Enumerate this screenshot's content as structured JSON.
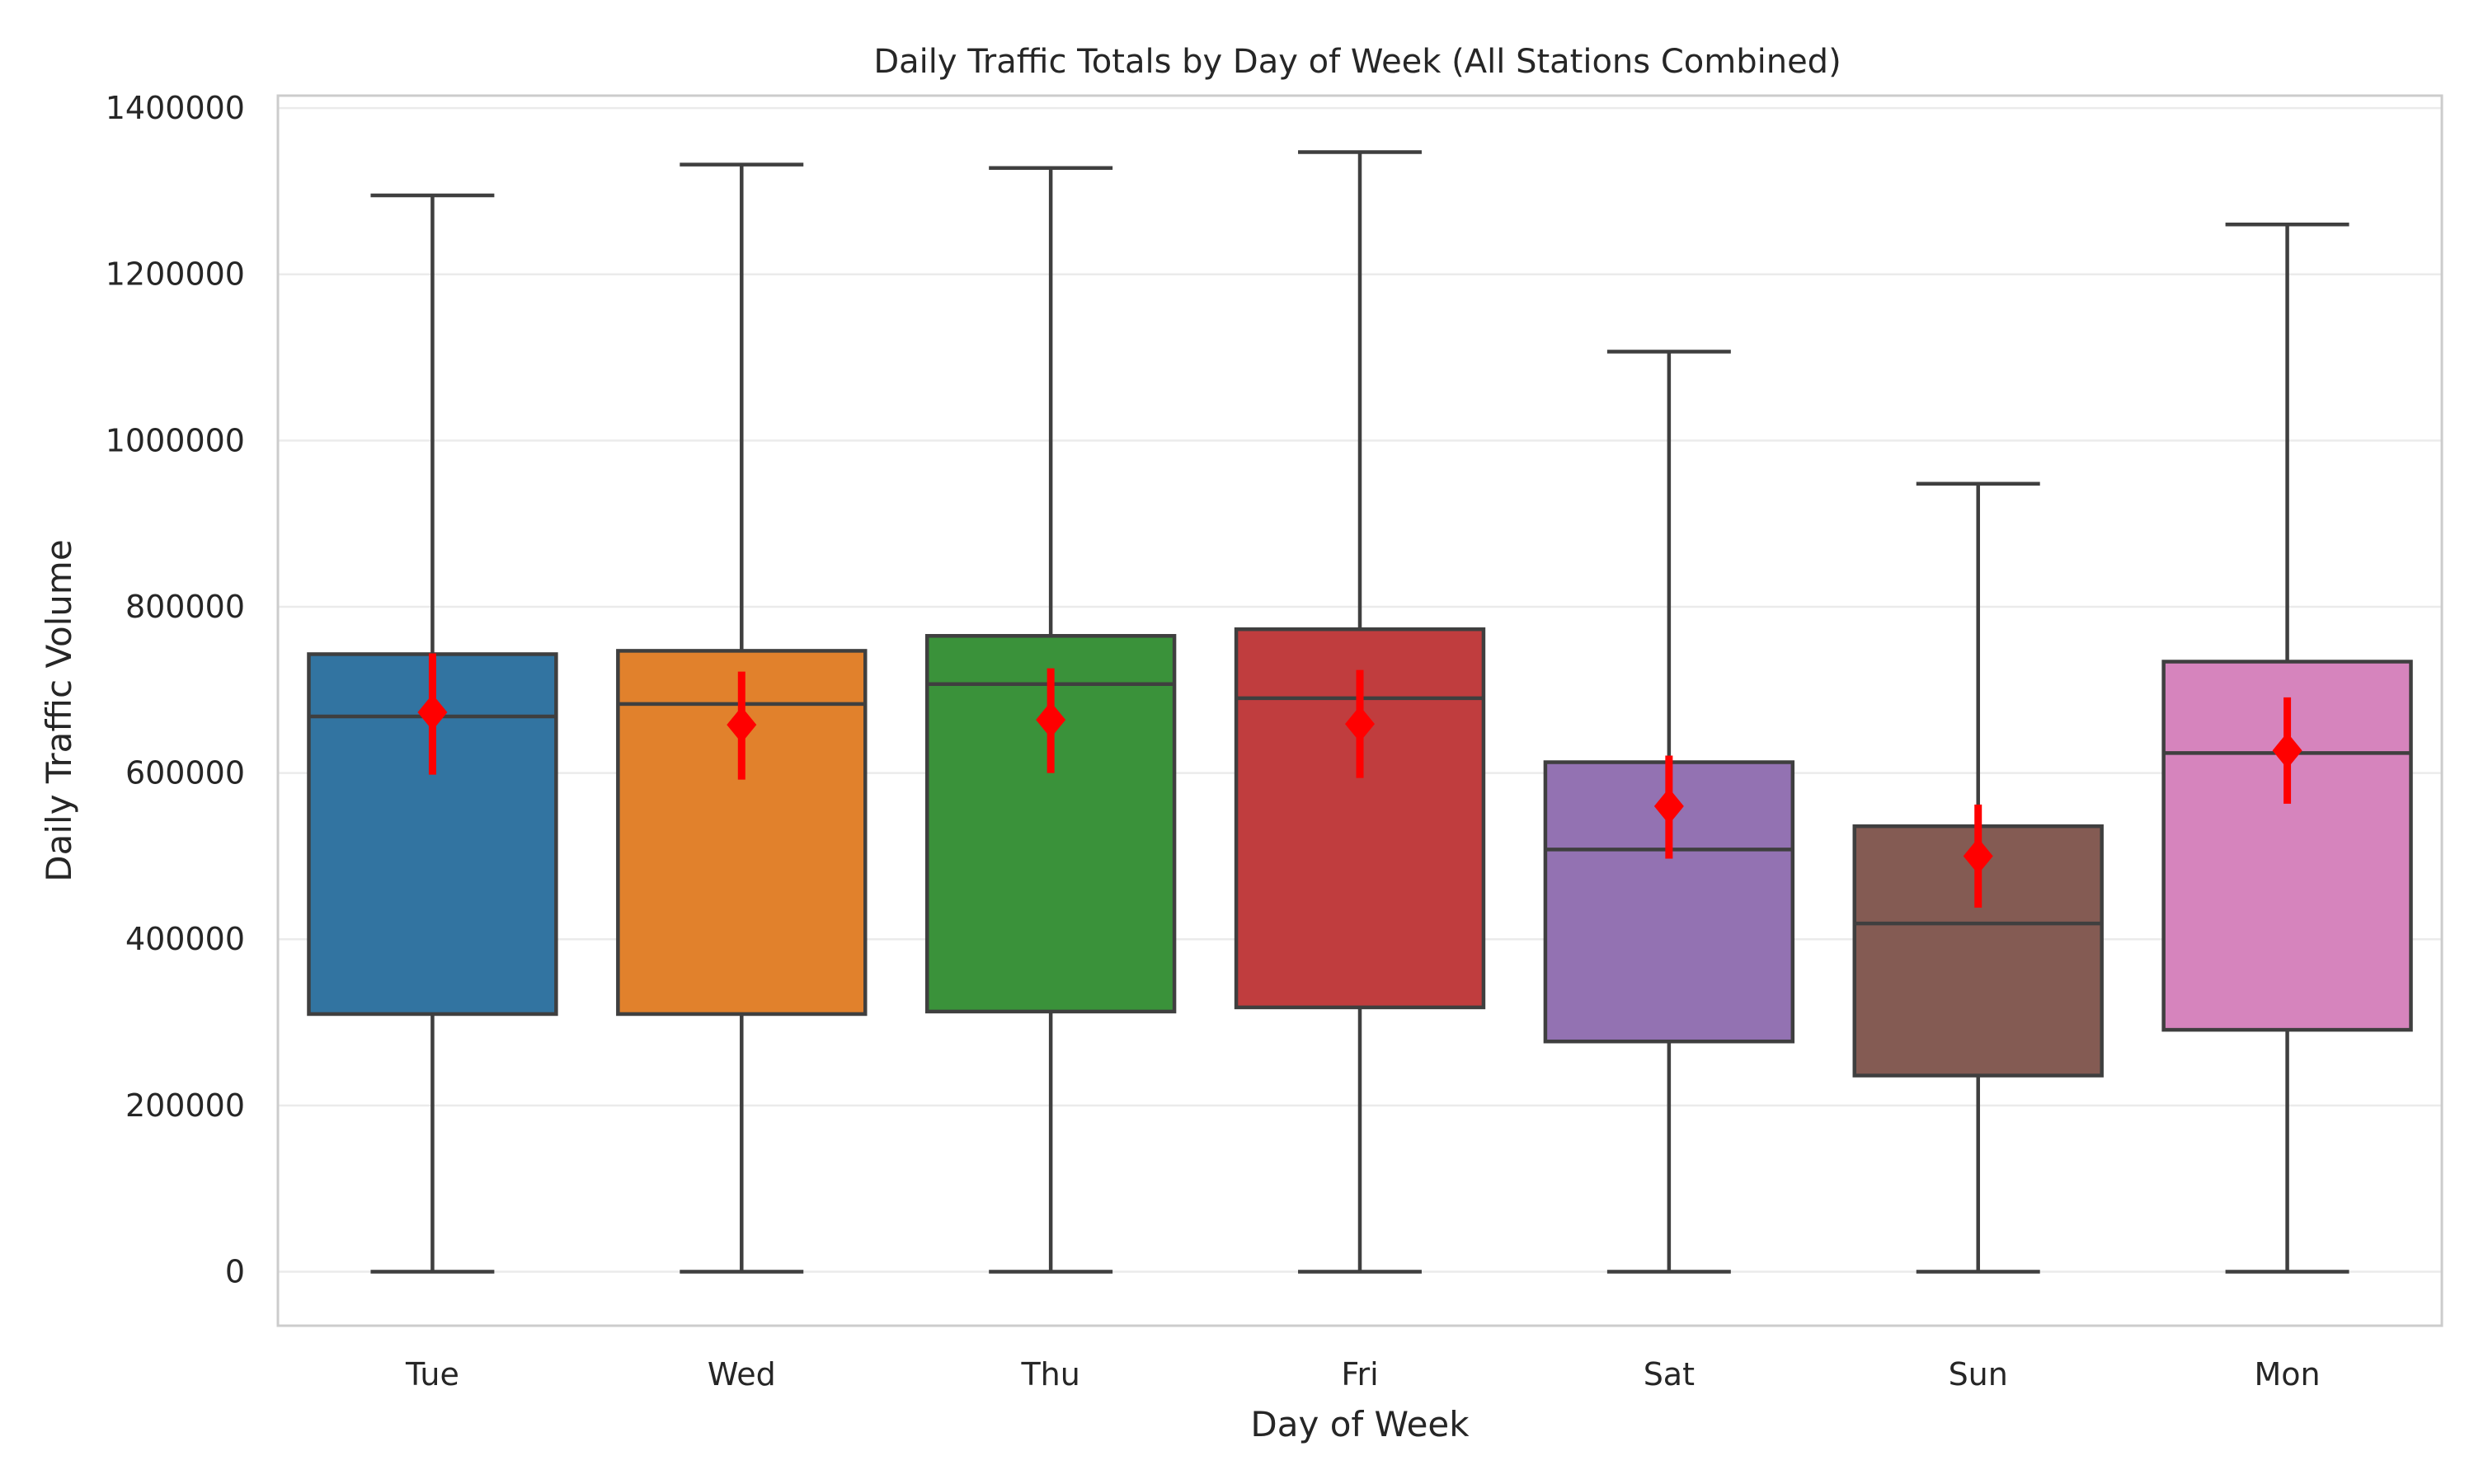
{
  "chart_data": {
    "type": "box",
    "title": "Daily Traffic Totals by Day of Week (All Stations Combined)",
    "xlabel": "Day of Week",
    "ylabel": "Daily Traffic Volume",
    "ylim": [
      -65000,
      1415000
    ],
    "yticks": [
      0,
      200000,
      400000,
      600000,
      800000,
      1000000,
      1200000,
      1400000
    ],
    "ytick_labels": [
      "0",
      "200000",
      "400000",
      "600000",
      "800000",
      "1000000",
      "1200000",
      "1400000"
    ],
    "grid": true,
    "categories": [
      "Tue",
      "Wed",
      "Thu",
      "Fri",
      "Sat",
      "Sun",
      "Mon"
    ],
    "colors": [
      "#3274a1",
      "#e1812c",
      "#3a923a",
      "#c03d3e",
      "#9372b2",
      "#845b53",
      "#d684bd"
    ],
    "mean_color": "#ff0000",
    "boxes": [
      {
        "category": "Tue",
        "whisker_low": 0,
        "q1": 310000,
        "median": 668000,
        "q3": 743000,
        "whisker_high": 1295000,
        "mean": 673000,
        "mean_ci": [
          598000,
          744000
        ]
      },
      {
        "category": "Wed",
        "whisker_low": 0,
        "q1": 310000,
        "median": 683000,
        "q3": 747000,
        "whisker_high": 1332000,
        "mean": 658000,
        "mean_ci": [
          592000,
          722000
        ]
      },
      {
        "category": "Thu",
        "whisker_low": 0,
        "q1": 313000,
        "median": 707000,
        "q3": 765000,
        "whisker_high": 1328000,
        "mean": 664000,
        "mean_ci": [
          600000,
          726000
        ]
      },
      {
        "category": "Fri",
        "whisker_low": 0,
        "q1": 318000,
        "median": 690000,
        "q3": 773000,
        "whisker_high": 1347000,
        "mean": 659000,
        "mean_ci": [
          594000,
          724000
        ]
      },
      {
        "category": "Sat",
        "whisker_low": 0,
        "q1": 277000,
        "median": 508000,
        "q3": 613000,
        "whisker_high": 1107000,
        "mean": 560000,
        "mean_ci": [
          497000,
          621000
        ]
      },
      {
        "category": "Sun",
        "whisker_low": 0,
        "q1": 236000,
        "median": 419000,
        "q3": 536000,
        "whisker_high": 948000,
        "mean": 500000,
        "mean_ci": [
          438000,
          562000
        ]
      },
      {
        "category": "Mon",
        "whisker_low": 0,
        "q1": 291000,
        "median": 624000,
        "q3": 734000,
        "whisker_high": 1260000,
        "mean": 627000,
        "mean_ci": [
          563000,
          691000
        ]
      }
    ]
  }
}
